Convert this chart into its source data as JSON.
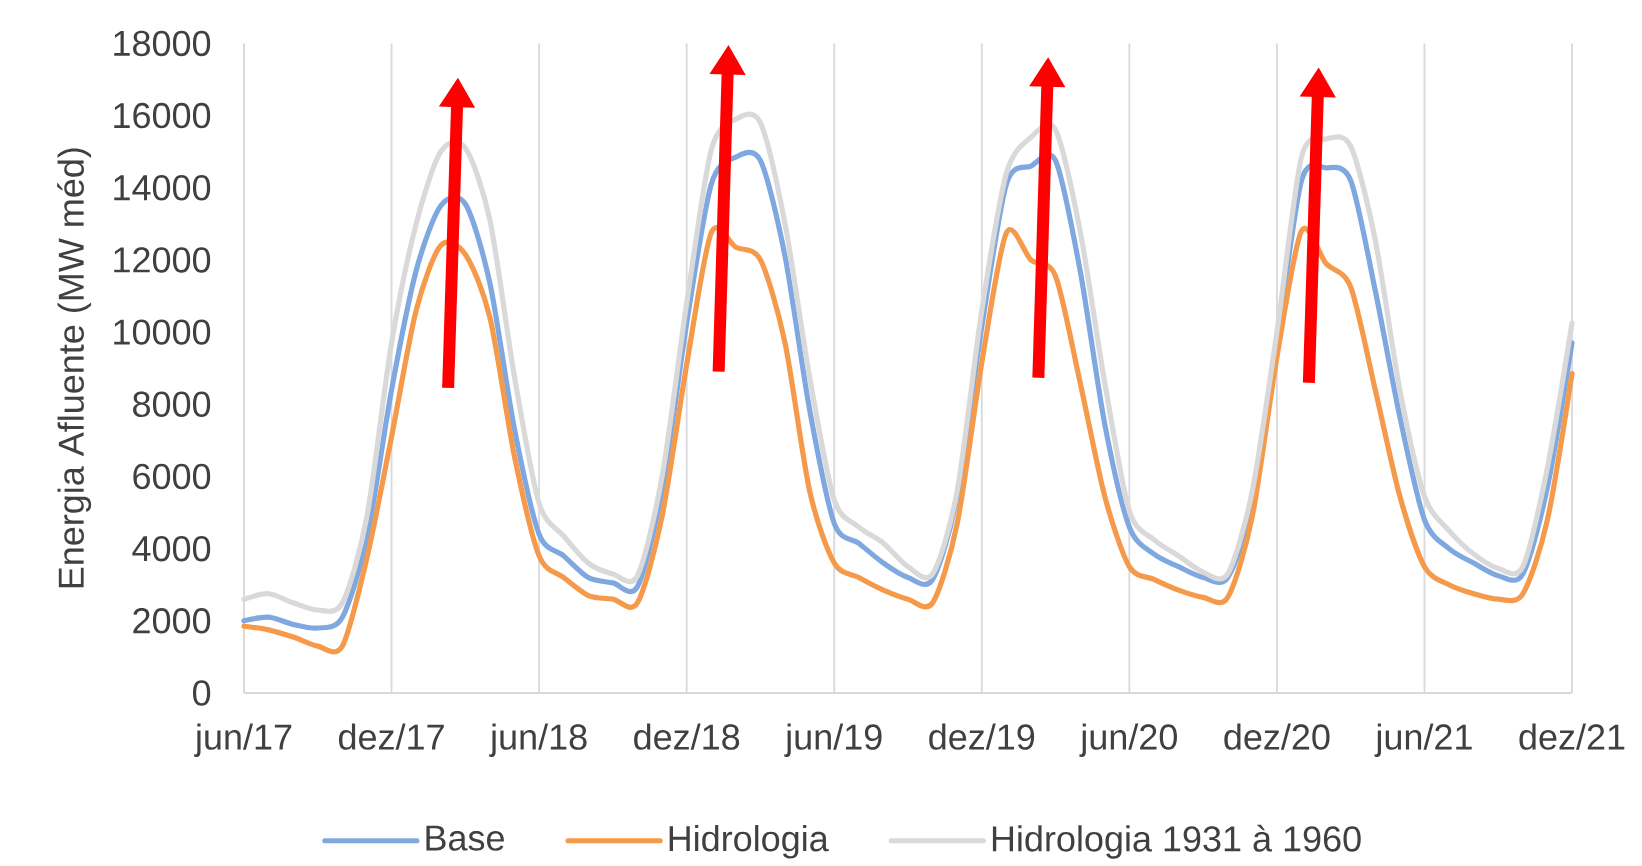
{
  "chart_data": {
    "type": "line",
    "categories": [
      "jun/17",
      null,
      null,
      null,
      null,
      null,
      "dez/17",
      null,
      null,
      null,
      null,
      null,
      "jun/18",
      null,
      null,
      null,
      null,
      null,
      "dez/18",
      null,
      null,
      null,
      null,
      null,
      "jun/19",
      null,
      null,
      null,
      null,
      null,
      "dez/19",
      null,
      null,
      null,
      null,
      null,
      "jun/20",
      null,
      null,
      null,
      null,
      null,
      "dez/20",
      null,
      null,
      null,
      null,
      null,
      "jun/21",
      null,
      null,
      null,
      null,
      null,
      "dez/21"
    ],
    "series": [
      {
        "name": "Base",
        "color": "#7fa8e0",
        "values": [
          2000,
          2100,
          1900,
          1800,
          2100,
          4300,
          8400,
          11700,
          13500,
          13550,
          11350,
          7300,
          4400,
          3800,
          3200,
          3050,
          2950,
          5600,
          10250,
          14100,
          14850,
          14750,
          12100,
          7850,
          4700,
          4150,
          3600,
          3200,
          3150,
          5450,
          10150,
          14100,
          14600,
          14750,
          11700,
          7450,
          4600,
          3850,
          3500,
          3200,
          3200,
          5250,
          9700,
          14200,
          14550,
          14200,
          11150,
          7650,
          4800,
          4000,
          3600,
          3250,
          3300,
          5700,
          9700
        ]
      },
      {
        "name": "Hidrologia",
        "color": "#f59a4a",
        "values": [
          1850,
          1750,
          1550,
          1300,
          1300,
          3750,
          7100,
          10600,
          12400,
          12150,
          10400,
          6550,
          3800,
          3200,
          2700,
          2600,
          2500,
          4900,
          9100,
          12750,
          12350,
          12000,
          9700,
          5600,
          3600,
          3200,
          2850,
          2600,
          2500,
          4700,
          9150,
          12750,
          12000,
          11550,
          8600,
          5450,
          3500,
          3150,
          2850,
          2650,
          2650,
          4900,
          9300,
          12800,
          11900,
          11250,
          8400,
          5450,
          3500,
          3000,
          2750,
          2600,
          2750,
          4800,
          8850
        ]
      },
      {
        "name": "Hidrologia 1931 à 1960",
        "color": "#d9d9d9",
        "values": [
          2600,
          2750,
          2500,
          2300,
          2500,
          4900,
          9700,
          13000,
          15000,
          15100,
          13100,
          8750,
          5250,
          4350,
          3600,
          3300,
          3250,
          6000,
          10800,
          15050,
          15900,
          15800,
          13000,
          8750,
          5350,
          4600,
          4150,
          3500,
          3300,
          5600,
          10600,
          14400,
          15400,
          15600,
          12800,
          8600,
          5050,
          4250,
          3800,
          3350,
          3300,
          5600,
          10000,
          14850,
          15350,
          15150,
          12550,
          8400,
          5450,
          4500,
          3850,
          3450,
          3500,
          6250,
          10250
        ]
      }
    ],
    "ylabel": "Energia Afluente (MW méd)",
    "ylim": [
      0,
      18000
    ],
    "yticks": [
      0,
      2000,
      4000,
      6000,
      8000,
      10000,
      12000,
      14000,
      16000,
      18000
    ],
    "grid": "x",
    "legend": "bottom",
    "line_style": "solid"
  }
}
